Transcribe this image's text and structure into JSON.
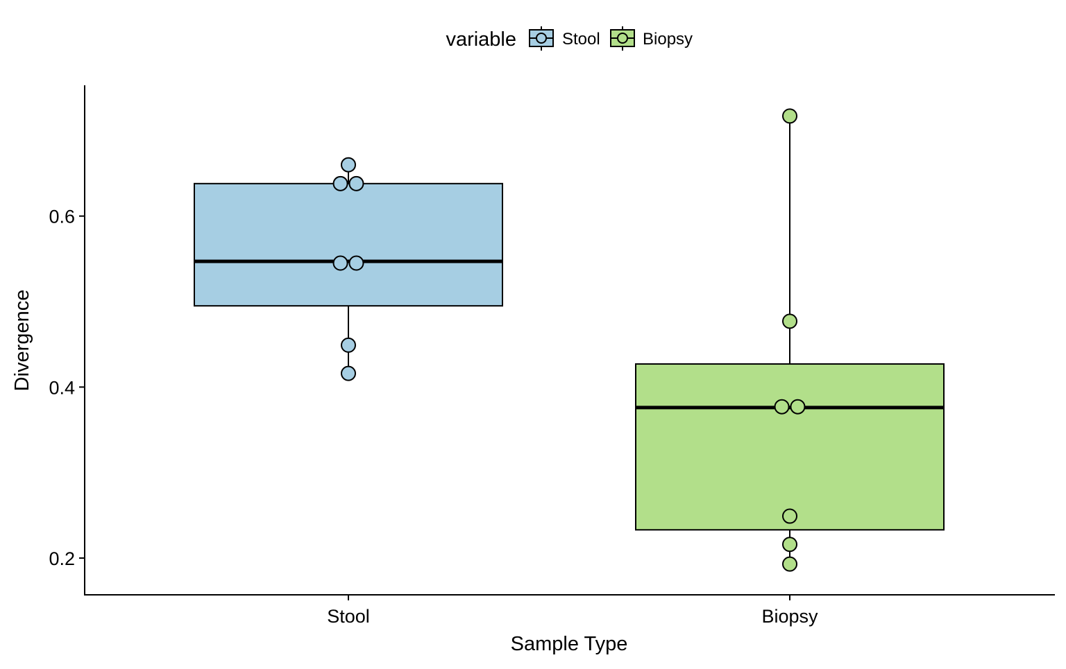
{
  "chart_data": {
    "type": "box",
    "title": "",
    "xlabel": "Sample Type",
    "ylabel": "Divergence",
    "ylim": [
      0.157,
      0.753
    ],
    "yticks": [
      0.2,
      0.4,
      0.6
    ],
    "ytick_labels": [
      "0.2",
      "0.4",
      "0.6"
    ],
    "categories": [
      "Stool",
      "Biopsy"
    ],
    "grid": false,
    "legend": {
      "title": "variable",
      "position": "top",
      "entries": [
        "Stool",
        "Biopsy"
      ]
    },
    "colors": {
      "Stool": "#a6cee3",
      "Biopsy": "#b2df8a",
      "outline": "#000000"
    },
    "series": [
      {
        "name": "Stool",
        "box": {
          "lower_whisker": 0.416,
          "q1": 0.495,
          "median": 0.547,
          "q3": 0.638,
          "upper_whisker": 0.66
        },
        "points": [
          {
            "x": 0.0,
            "y": 0.66
          },
          {
            "x": -0.018,
            "y": 0.638
          },
          {
            "x": 0.018,
            "y": 0.638
          },
          {
            "x": -0.018,
            "y": 0.545
          },
          {
            "x": 0.018,
            "y": 0.545
          },
          {
            "x": 0.0,
            "y": 0.449
          },
          {
            "x": 0.0,
            "y": 0.416
          }
        ]
      },
      {
        "name": "Biopsy",
        "box": {
          "lower_whisker": 0.193,
          "q1": 0.233,
          "median": 0.376,
          "q3": 0.427,
          "upper_whisker": 0.717
        },
        "points": [
          {
            "x": 0.0,
            "y": 0.717
          },
          {
            "x": 0.0,
            "y": 0.477
          },
          {
            "x": -0.018,
            "y": 0.377
          },
          {
            "x": 0.018,
            "y": 0.377
          },
          {
            "x": 0.0,
            "y": 0.249
          },
          {
            "x": 0.0,
            "y": 0.216
          },
          {
            "x": 0.0,
            "y": 0.193
          }
        ]
      }
    ]
  }
}
